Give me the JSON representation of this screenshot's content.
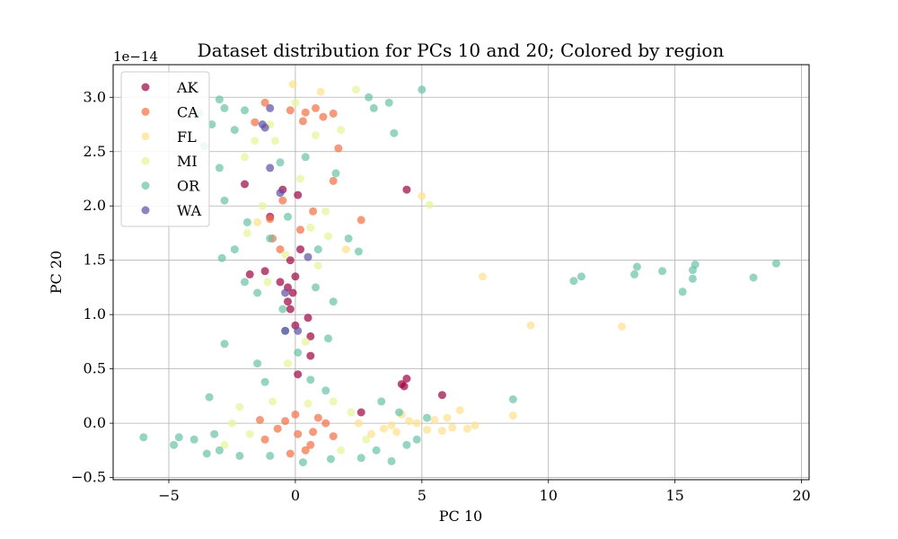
{
  "chart_data": {
    "type": "scatter",
    "title": "Dataset distribution for PCs 10 and 20; Colored by region",
    "xlabel": "PC 10",
    "ylabel": "PC 20",
    "y_scale_label": "1e−14",
    "xlim": [
      -7.2,
      20.3
    ],
    "ylim": [
      -0.52,
      3.3
    ],
    "x_ticks": [
      {
        "value": -5,
        "label": "−5"
      },
      {
        "value": 0,
        "label": "0"
      },
      {
        "value": 5,
        "label": "5"
      },
      {
        "value": 10,
        "label": "10"
      },
      {
        "value": 15,
        "label": "15"
      },
      {
        "value": 20,
        "label": "20"
      }
    ],
    "y_ticks": [
      {
        "value": -0.5,
        "label": "−0.5"
      },
      {
        "value": 0.0,
        "label": "0.0"
      },
      {
        "value": 0.5,
        "label": "0.5"
      },
      {
        "value": 1.0,
        "label": "1.0"
      },
      {
        "value": 1.5,
        "label": "1.5"
      },
      {
        "value": 2.0,
        "label": "2.0"
      },
      {
        "value": 2.5,
        "label": "2.5"
      },
      {
        "value": 3.0,
        "label": "3.0"
      }
    ],
    "grid": true,
    "legend_position": "top-left",
    "series": [
      {
        "name": "AK",
        "color": "#9e0142",
        "points": [
          [
            4.4,
            2.15
          ],
          [
            5.8,
            0.26
          ],
          [
            4.4,
            0.41
          ],
          [
            4.2,
            0.36
          ],
          [
            4.3,
            0.34
          ],
          [
            -0.2,
            1.05
          ],
          [
            -0.1,
            1.2
          ],
          [
            -0.3,
            1.25
          ],
          [
            0.0,
            1.35
          ],
          [
            -0.2,
            1.5
          ],
          [
            -1.8,
            1.37
          ],
          [
            -1.2,
            1.4
          ],
          [
            -0.5,
            2.15
          ],
          [
            0.1,
            2.1
          ],
          [
            -2.0,
            2.2
          ],
          [
            0.6,
            0.8
          ],
          [
            0.6,
            0.62
          ],
          [
            0.1,
            0.45
          ],
          [
            2.6,
            0.1
          ],
          [
            -0.3,
            1.12
          ],
          [
            0.2,
            1.6
          ],
          [
            -0.6,
            1.3
          ],
          [
            0.5,
            0.97
          ],
          [
            -1.0,
            1.9
          ],
          [
            0.0,
            0.9
          ]
        ]
      },
      {
        "name": "CA",
        "color": "#f46d43",
        "points": [
          [
            1.7,
            2.53
          ],
          [
            2.6,
            1.87
          ],
          [
            1.5,
            2.23
          ],
          [
            -0.5,
            2.05
          ],
          [
            -1.0,
            1.88
          ],
          [
            -0.6,
            1.6
          ],
          [
            0.7,
            1.95
          ],
          [
            0.3,
            2.78
          ],
          [
            -1.6,
            2.77
          ],
          [
            1.5,
            2.85
          ],
          [
            -1.2,
            2.95
          ],
          [
            0.4,
            2.86
          ],
          [
            -0.2,
            2.88
          ],
          [
            0.8,
            2.9
          ],
          [
            1.1,
            2.82
          ],
          [
            0.2,
            1.78
          ],
          [
            -0.9,
            1.7
          ],
          [
            0.1,
            -0.1
          ],
          [
            -0.7,
            -0.05
          ],
          [
            0.6,
            -0.2
          ],
          [
            1.2,
            0.0
          ],
          [
            -1.2,
            -0.15
          ],
          [
            0.9,
            0.05
          ],
          [
            -0.4,
            0.02
          ],
          [
            0.4,
            -0.25
          ],
          [
            1.5,
            -0.12
          ],
          [
            -1.4,
            0.03
          ],
          [
            0.0,
            0.08
          ],
          [
            -0.2,
            -0.28
          ],
          [
            0.7,
            -0.08
          ]
        ]
      },
      {
        "name": "FL",
        "color": "#fee08b",
        "points": [
          [
            9.3,
            0.9
          ],
          [
            12.9,
            0.89
          ],
          [
            7.4,
            1.35
          ],
          [
            5.0,
            2.09
          ],
          [
            8.6,
            0.07
          ],
          [
            6.5,
            0.12
          ],
          [
            6.2,
            -0.04
          ],
          [
            7.1,
            -0.02
          ],
          [
            5.5,
            0.03
          ],
          [
            4.8,
            0.0
          ],
          [
            3.5,
            -0.05
          ],
          [
            4.0,
            -0.08
          ],
          [
            4.5,
            0.02
          ],
          [
            6.0,
            0.05
          ],
          [
            5.2,
            -0.06
          ],
          [
            2.0,
            1.6
          ],
          [
            -0.1,
            3.12
          ],
          [
            1.0,
            3.05
          ],
          [
            -1.5,
            1.85
          ],
          [
            3.0,
            -0.1
          ],
          [
            2.5,
            0.0
          ],
          [
            5.8,
            -0.07
          ],
          [
            6.8,
            -0.05
          ],
          [
            4.2,
            0.08
          ],
          [
            3.8,
            -0.02
          ]
        ]
      },
      {
        "name": "MI",
        "color": "#e6f598",
        "points": [
          [
            5.3,
            2.01
          ],
          [
            2.4,
            3.07
          ],
          [
            -0.8,
            2.6
          ],
          [
            0.2,
            2.25
          ],
          [
            -1.3,
            2.0
          ],
          [
            0.6,
            1.8
          ],
          [
            -0.4,
            1.55
          ],
          [
            0.9,
            1.45
          ],
          [
            -1.9,
            1.75
          ],
          [
            1.2,
            1.95
          ],
          [
            -2.2,
            0.15
          ],
          [
            -0.9,
            0.2
          ],
          [
            0.5,
            0.18
          ],
          [
            1.5,
            0.2
          ],
          [
            2.2,
            0.1
          ],
          [
            -2.8,
            -0.2
          ],
          [
            -1.8,
            -0.1
          ],
          [
            -2.5,
            0.0
          ],
          [
            2.8,
            -0.15
          ],
          [
            1.8,
            -0.25
          ],
          [
            -1.0,
            2.75
          ],
          [
            0.0,
            2.95
          ],
          [
            1.8,
            2.7
          ],
          [
            -1.6,
            2.6
          ],
          [
            0.8,
            2.65
          ],
          [
            -2.0,
            2.45
          ],
          [
            1.3,
            1.72
          ],
          [
            -0.3,
            0.55
          ],
          [
            0.4,
            0.75
          ],
          [
            -1.1,
            1.3
          ]
        ]
      },
      {
        "name": "OR",
        "color": "#66c2a5",
        "points": [
          [
            5.0,
            3.07
          ],
          [
            -6.0,
            -0.13
          ],
          [
            -4.6,
            -0.13
          ],
          [
            -3.6,
            2.55
          ],
          [
            -3.4,
            0.24
          ],
          [
            -2.8,
            0.73
          ],
          [
            -1.5,
            0.55
          ],
          [
            3.9,
            2.67
          ],
          [
            8.6,
            0.22
          ],
          [
            11.0,
            1.31
          ],
          [
            11.3,
            1.35
          ],
          [
            13.4,
            1.37
          ],
          [
            13.5,
            1.44
          ],
          [
            14.5,
            1.4
          ],
          [
            15.3,
            1.21
          ],
          [
            15.7,
            1.33
          ],
          [
            15.7,
            1.41
          ],
          [
            15.8,
            1.46
          ],
          [
            18.1,
            1.34
          ],
          [
            19.0,
            1.47
          ],
          [
            -3.8,
            2.85
          ],
          [
            -3.0,
            2.98
          ],
          [
            -2.4,
            2.7
          ],
          [
            -2.8,
            2.9
          ],
          [
            -3.3,
            2.75
          ],
          [
            -2.0,
            2.88
          ],
          [
            3.1,
            2.9
          ],
          [
            3.7,
            2.95
          ],
          [
            2.9,
            3.0
          ],
          [
            -3.0,
            2.35
          ],
          [
            -2.8,
            2.05
          ],
          [
            -1.9,
            1.85
          ],
          [
            -2.4,
            1.6
          ],
          [
            -2.9,
            1.52
          ],
          [
            -2.0,
            1.3
          ],
          [
            -1.5,
            1.2
          ],
          [
            1.5,
            1.12
          ],
          [
            1.3,
            0.78
          ],
          [
            2.5,
            1.58
          ],
          [
            2.1,
            1.7
          ],
          [
            -1.2,
            0.38
          ],
          [
            1.2,
            0.3
          ],
          [
            3.4,
            0.2
          ],
          [
            4.1,
            0.1
          ],
          [
            5.2,
            0.05
          ],
          [
            -4.8,
            -0.2
          ],
          [
            -3.5,
            -0.28
          ],
          [
            -3.2,
            -0.1
          ],
          [
            4.8,
            -0.15
          ],
          [
            3.8,
            -0.35
          ],
          [
            2.6,
            -0.32
          ],
          [
            -1.0,
            -0.3
          ],
          [
            0.3,
            -0.36
          ],
          [
            1.4,
            -0.33
          ],
          [
            -2.2,
            -0.3
          ],
          [
            -4.0,
            -0.15
          ],
          [
            -3.0,
            -0.25
          ],
          [
            4.4,
            -0.2
          ],
          [
            3.2,
            -0.25
          ],
          [
            -0.6,
            2.4
          ],
          [
            0.4,
            2.45
          ],
          [
            1.6,
            2.3
          ],
          [
            -0.3,
            1.9
          ],
          [
            0.9,
            1.6
          ],
          [
            -1.0,
            1.7
          ],
          [
            0.8,
            1.25
          ],
          [
            -0.5,
            1.05
          ],
          [
            0.1,
            0.65
          ],
          [
            -0.4,
            0.85
          ],
          [
            0.6,
            0.4
          ]
        ]
      },
      {
        "name": "WA",
        "color": "#5e4fa2",
        "points": [
          [
            -1.0,
            2.9
          ],
          [
            -1.3,
            2.75
          ],
          [
            -1.2,
            2.72
          ],
          [
            -1.0,
            2.35
          ],
          [
            -0.6,
            2.12
          ],
          [
            0.1,
            0.85
          ],
          [
            -0.4,
            0.85
          ],
          [
            0.5,
            1.53
          ],
          [
            -0.4,
            1.2
          ]
        ]
      }
    ]
  }
}
